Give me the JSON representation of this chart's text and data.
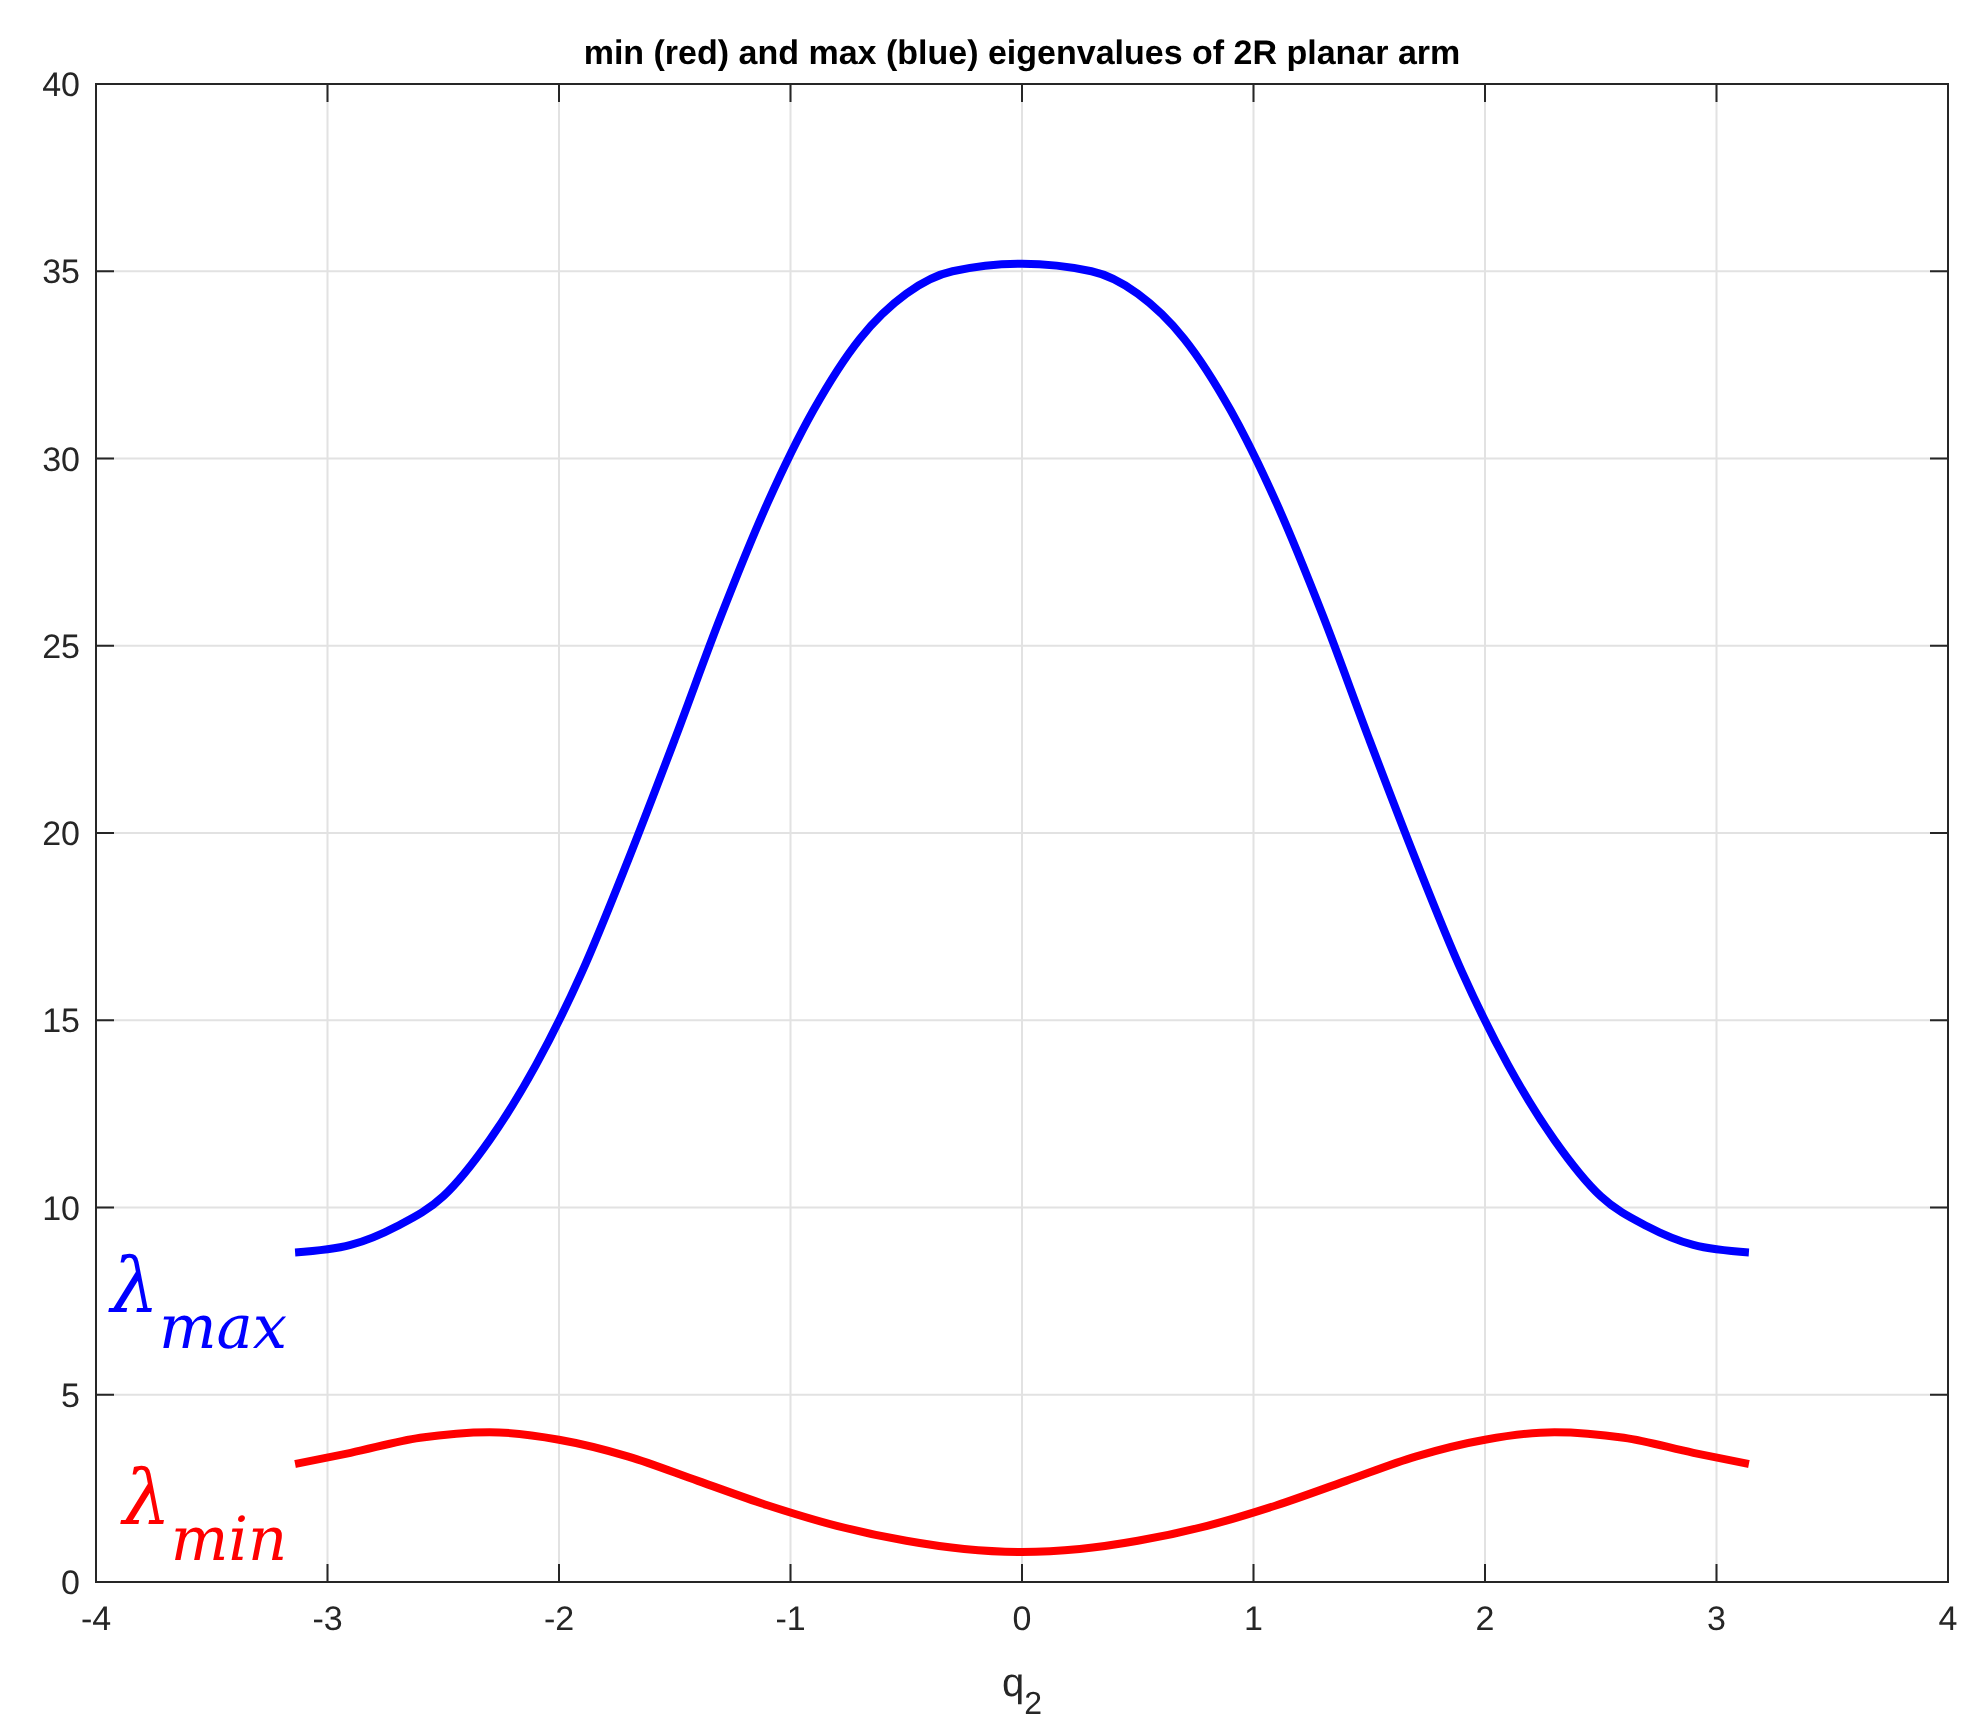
{
  "chart_data": {
    "type": "line",
    "title": "min (red) and max (blue) eigenvalues of 2R planar arm",
    "xlabel": "q$_{2}$",
    "xlim": [
      -4,
      4
    ],
    "xticks": [
      -4,
      -3,
      -2,
      -1,
      0,
      1,
      2,
      3,
      4
    ],
    "ylim": [
      0,
      40
    ],
    "yticks": [
      0,
      5,
      10,
      15,
      20,
      25,
      30,
      35,
      40
    ],
    "grid": true,
    "line_style": "solid",
    "series": [
      {
        "name": "λ$_{max}$",
        "color": "#0000ff",
        "x": [
          -3.14,
          -2.9,
          -2.7,
          -2.5,
          -2.3,
          -2.1,
          -1.9,
          -1.7,
          -1.5,
          -1.3,
          -1.1,
          -0.9,
          -0.7,
          -0.5,
          -0.3,
          0,
          0.3,
          0.5,
          0.7,
          0.9,
          1.1,
          1.3,
          1.5,
          1.7,
          1.9,
          2.1,
          2.3,
          2.5,
          2.7,
          2.9,
          3.14
        ],
        "values": [
          8.8,
          9.0,
          9.5,
          10.3,
          11.8,
          13.8,
          16.3,
          19.3,
          22.5,
          25.8,
          28.8,
          31.3,
          33.2,
          34.4,
          35.0,
          35.2,
          35.0,
          34.4,
          33.2,
          31.3,
          28.8,
          25.8,
          22.5,
          19.3,
          16.3,
          13.8,
          11.8,
          10.3,
          9.5,
          9.0,
          8.8
        ]
      },
      {
        "name": "λ$_{min}$",
        "color": "#ff0000",
        "x": [
          -3.14,
          -2.9,
          -2.6,
          -2.3,
          -2.0,
          -1.7,
          -1.4,
          -1.1,
          -0.8,
          -0.5,
          -0.25,
          0,
          0.25,
          0.5,
          0.8,
          1.1,
          1.4,
          1.7,
          2.0,
          2.3,
          2.6,
          2.9,
          3.14
        ],
        "values": [
          3.15,
          3.45,
          3.85,
          4.0,
          3.8,
          3.35,
          2.7,
          2.05,
          1.5,
          1.1,
          0.88,
          0.8,
          0.88,
          1.1,
          1.5,
          2.05,
          2.7,
          3.35,
          3.8,
          4.0,
          3.85,
          3.45,
          3.15
        ]
      }
    ]
  }
}
